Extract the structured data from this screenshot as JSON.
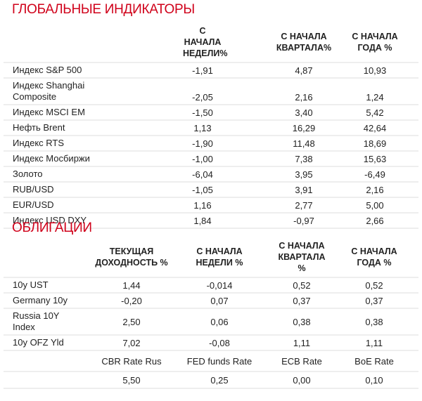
{
  "global": {
    "title": "ГЛОБАЛЬНЫЕ ИНДИКАТОРЫ",
    "headers": [
      "С НАЧАЛА НЕДЕЛИ%",
      "С НАЧАЛА КВАРТАЛА%",
      "С НАЧАЛА ГОДА %"
    ],
    "rows": [
      {
        "name": "Индекс S&P 500",
        "week": "-1,91",
        "quarter": "4,87",
        "year": "10,93"
      },
      {
        "name": "Индекс Shanghai Composite",
        "week": "-2,05",
        "quarter": "2,16",
        "year": "1,24"
      },
      {
        "name": "Индекс MSCI EM",
        "week": "-1,50",
        "quarter": "3,40",
        "year": "5,42"
      },
      {
        "name": "Нефть Brent",
        "week": "1,13",
        "quarter": "16,29",
        "year": "42,64"
      },
      {
        "name": "Индекс RTS",
        "week": "-1,90",
        "quarter": "11,48",
        "year": "18,69"
      },
      {
        "name": "Индекс Мосбиржи",
        "week": "-1,00",
        "quarter": "7,38",
        "year": "15,63"
      },
      {
        "name": "Золото",
        "week": "-6,04",
        "quarter": "3,95",
        "year": "-6,49"
      },
      {
        "name": "RUB/USD",
        "week": "-1,05",
        "quarter": "3,91",
        "year": "2,16"
      },
      {
        "name": "EUR/USD",
        "week": "1,16",
        "quarter": "2,77",
        "year": "5,00"
      },
      {
        "name": "Индекс USD DXY",
        "week": "1,84",
        "quarter": "-0,97",
        "year": "2,66"
      }
    ]
  },
  "bonds": {
    "title": "ОБЛИГАЦИИ",
    "headers": [
      "ТЕКУЩАЯ ДОХОДНОСТЬ %",
      "С НАЧАЛА НЕДЕЛИ %",
      "С НАЧАЛА КВАРТАЛА %",
      "С НАЧАЛА ГОДА %"
    ],
    "rows": [
      {
        "name": "10y UST",
        "yield": "1,44",
        "week": "-0,014",
        "quarter": "0,52",
        "year": "0,52"
      },
      {
        "name": "Germany 10y",
        "yield": "-0,20",
        "week": "0,07",
        "quarter": "0,37",
        "year": "0,37"
      },
      {
        "name": "Russia 10Y Index",
        "yield": "2,50",
        "week": "0,06",
        "quarter": "0,38",
        "year": "0,38"
      },
      {
        "name": "10y OFZ Yld",
        "yield": "7,02",
        "week": "-0,08",
        "quarter": "1,11",
        "year": "1,11"
      }
    ],
    "rates": {
      "labels": [
        "CBR Rate Rus",
        "FED funds Rate",
        "ECB Rate",
        "BoE Rate"
      ],
      "values": [
        "5,50",
        "0,25",
        "0,00",
        "0,10"
      ]
    }
  }
}
